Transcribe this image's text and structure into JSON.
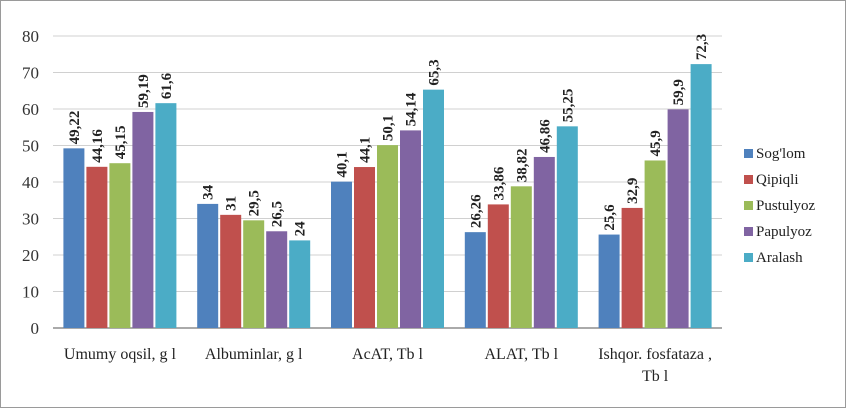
{
  "chart_data": {
    "type": "bar",
    "title": "",
    "xlabel": "",
    "ylabel": "",
    "ylim": [
      0,
      80
    ],
    "yticks": [
      "0",
      "10",
      "20",
      "30",
      "40",
      "50",
      "60",
      "70",
      "80"
    ],
    "grid": true,
    "legend_position": "right",
    "categories": [
      [
        "Umumy oqsil, g l"
      ],
      [
        "Albuminlar, g l"
      ],
      [
        "AcAT, Tb l"
      ],
      [
        "ALAT, Tb l"
      ],
      [
        "Ishqor. fosfataza ,",
        "Tb l"
      ]
    ],
    "series": [
      {
        "name": "Sog'lom",
        "color": "#4f81bd",
        "values": [
          49.22,
          34,
          40.1,
          26.26,
          25.6
        ],
        "labels": [
          "49,22",
          "34",
          "40,1",
          "26,26",
          "25,6"
        ]
      },
      {
        "name": "Qipiqli",
        "color": "#c0504d",
        "values": [
          44.16,
          31,
          44.1,
          33.86,
          32.9
        ],
        "labels": [
          "44,16",
          "31",
          "44,1",
          "33,86",
          "32,9"
        ]
      },
      {
        "name": "Pustulyoz",
        "color": "#9bbb59",
        "values": [
          45.15,
          29.5,
          50.1,
          38.82,
          45.9
        ],
        "labels": [
          "45,15",
          "29,5",
          "50,1",
          "38,82",
          "45,9"
        ]
      },
      {
        "name": "Papulyoz",
        "color": "#8064a2",
        "values": [
          59.19,
          26.5,
          54.14,
          46.86,
          59.9
        ],
        "labels": [
          "59,19",
          "26,5",
          "54,14",
          "46,86",
          "59,9"
        ]
      },
      {
        "name": "Aralash",
        "color": "#4bacc6",
        "values": [
          61.6,
          24,
          65.3,
          55.25,
          72.3
        ],
        "labels": [
          "61,6",
          "24",
          "65,3",
          "55,25",
          "72,3"
        ]
      }
    ]
  }
}
